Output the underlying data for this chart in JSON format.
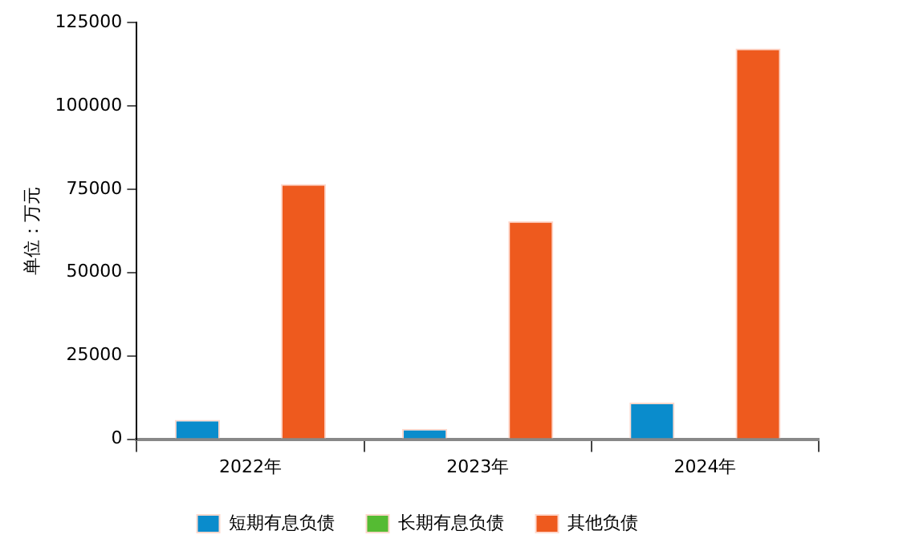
{
  "chart_data": {
    "type": "bar",
    "ylabel": "单位：万元",
    "categories": [
      "2022年",
      "2023年",
      "2024年"
    ],
    "series": [
      {
        "name": "短期有息负债",
        "color": "#0a8ccc",
        "values": [
          5800,
          3100,
          11000
        ]
      },
      {
        "name": "长期有息负债",
        "color": "#55bb33",
        "values": [
          0,
          0,
          0
        ]
      },
      {
        "name": "其他负债",
        "color": "#ee5a1e",
        "values": [
          76500,
          65400,
          117200
        ]
      }
    ],
    "ylim": [
      0,
      125000
    ],
    "yticks": [
      0,
      25000,
      50000,
      75000,
      100000,
      125000
    ],
    "grid": false,
    "legend": "bottom"
  }
}
